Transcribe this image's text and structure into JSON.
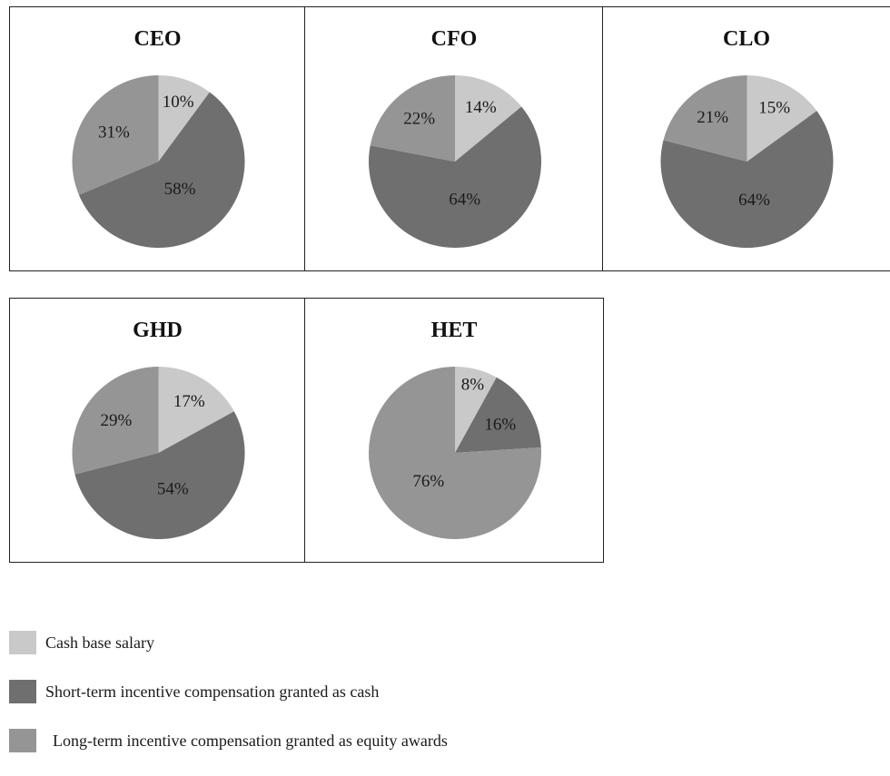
{
  "legend": {
    "items": [
      {
        "key": "cash",
        "label": "Cash base salary",
        "color": "#c9c9c9"
      },
      {
        "key": "short",
        "label": "Short-term incentive compensation granted as cash",
        "color": "#6f6f6f"
      },
      {
        "key": "long",
        "label": "Long-term incentive compensation granted as equity awards",
        "color": "#959595"
      }
    ]
  },
  "chart_data": [
    {
      "type": "pie",
      "title": "CEO",
      "categories": [
        "Cash base salary",
        "Short-term incentive compensation granted as cash",
        "Long-term incentive compensation granted as equity awards"
      ],
      "values": [
        10,
        58,
        31
      ],
      "labels": [
        "10%",
        "58%",
        "31%"
      ]
    },
    {
      "type": "pie",
      "title": "CFO",
      "categories": [
        "Cash base salary",
        "Short-term incentive compensation granted as cash",
        "Long-term incentive compensation granted as equity awards"
      ],
      "values": [
        14,
        64,
        22
      ],
      "labels": [
        "14%",
        "64%",
        "22%"
      ]
    },
    {
      "type": "pie",
      "title": "CLO",
      "categories": [
        "Cash base salary",
        "Short-term incentive compensation granted as cash",
        "Long-term incentive compensation granted as equity awards"
      ],
      "values": [
        15,
        64,
        21
      ],
      "labels": [
        "15%",
        "64%",
        "21%"
      ]
    },
    {
      "type": "pie",
      "title": "GHD",
      "categories": [
        "Cash base salary",
        "Short-term incentive compensation granted as cash",
        "Long-term incentive compensation granted as equity awards"
      ],
      "values": [
        17,
        54,
        29
      ],
      "labels": [
        "17%",
        "54%",
        "29%"
      ]
    },
    {
      "type": "pie",
      "title": "HET",
      "categories": [
        "Cash base salary",
        "Short-term incentive compensation granted as cash",
        "Long-term incentive compensation granted as equity awards"
      ],
      "values": [
        8,
        16,
        76
      ],
      "labels": [
        "8%",
        "16%",
        "76%"
      ]
    }
  ]
}
